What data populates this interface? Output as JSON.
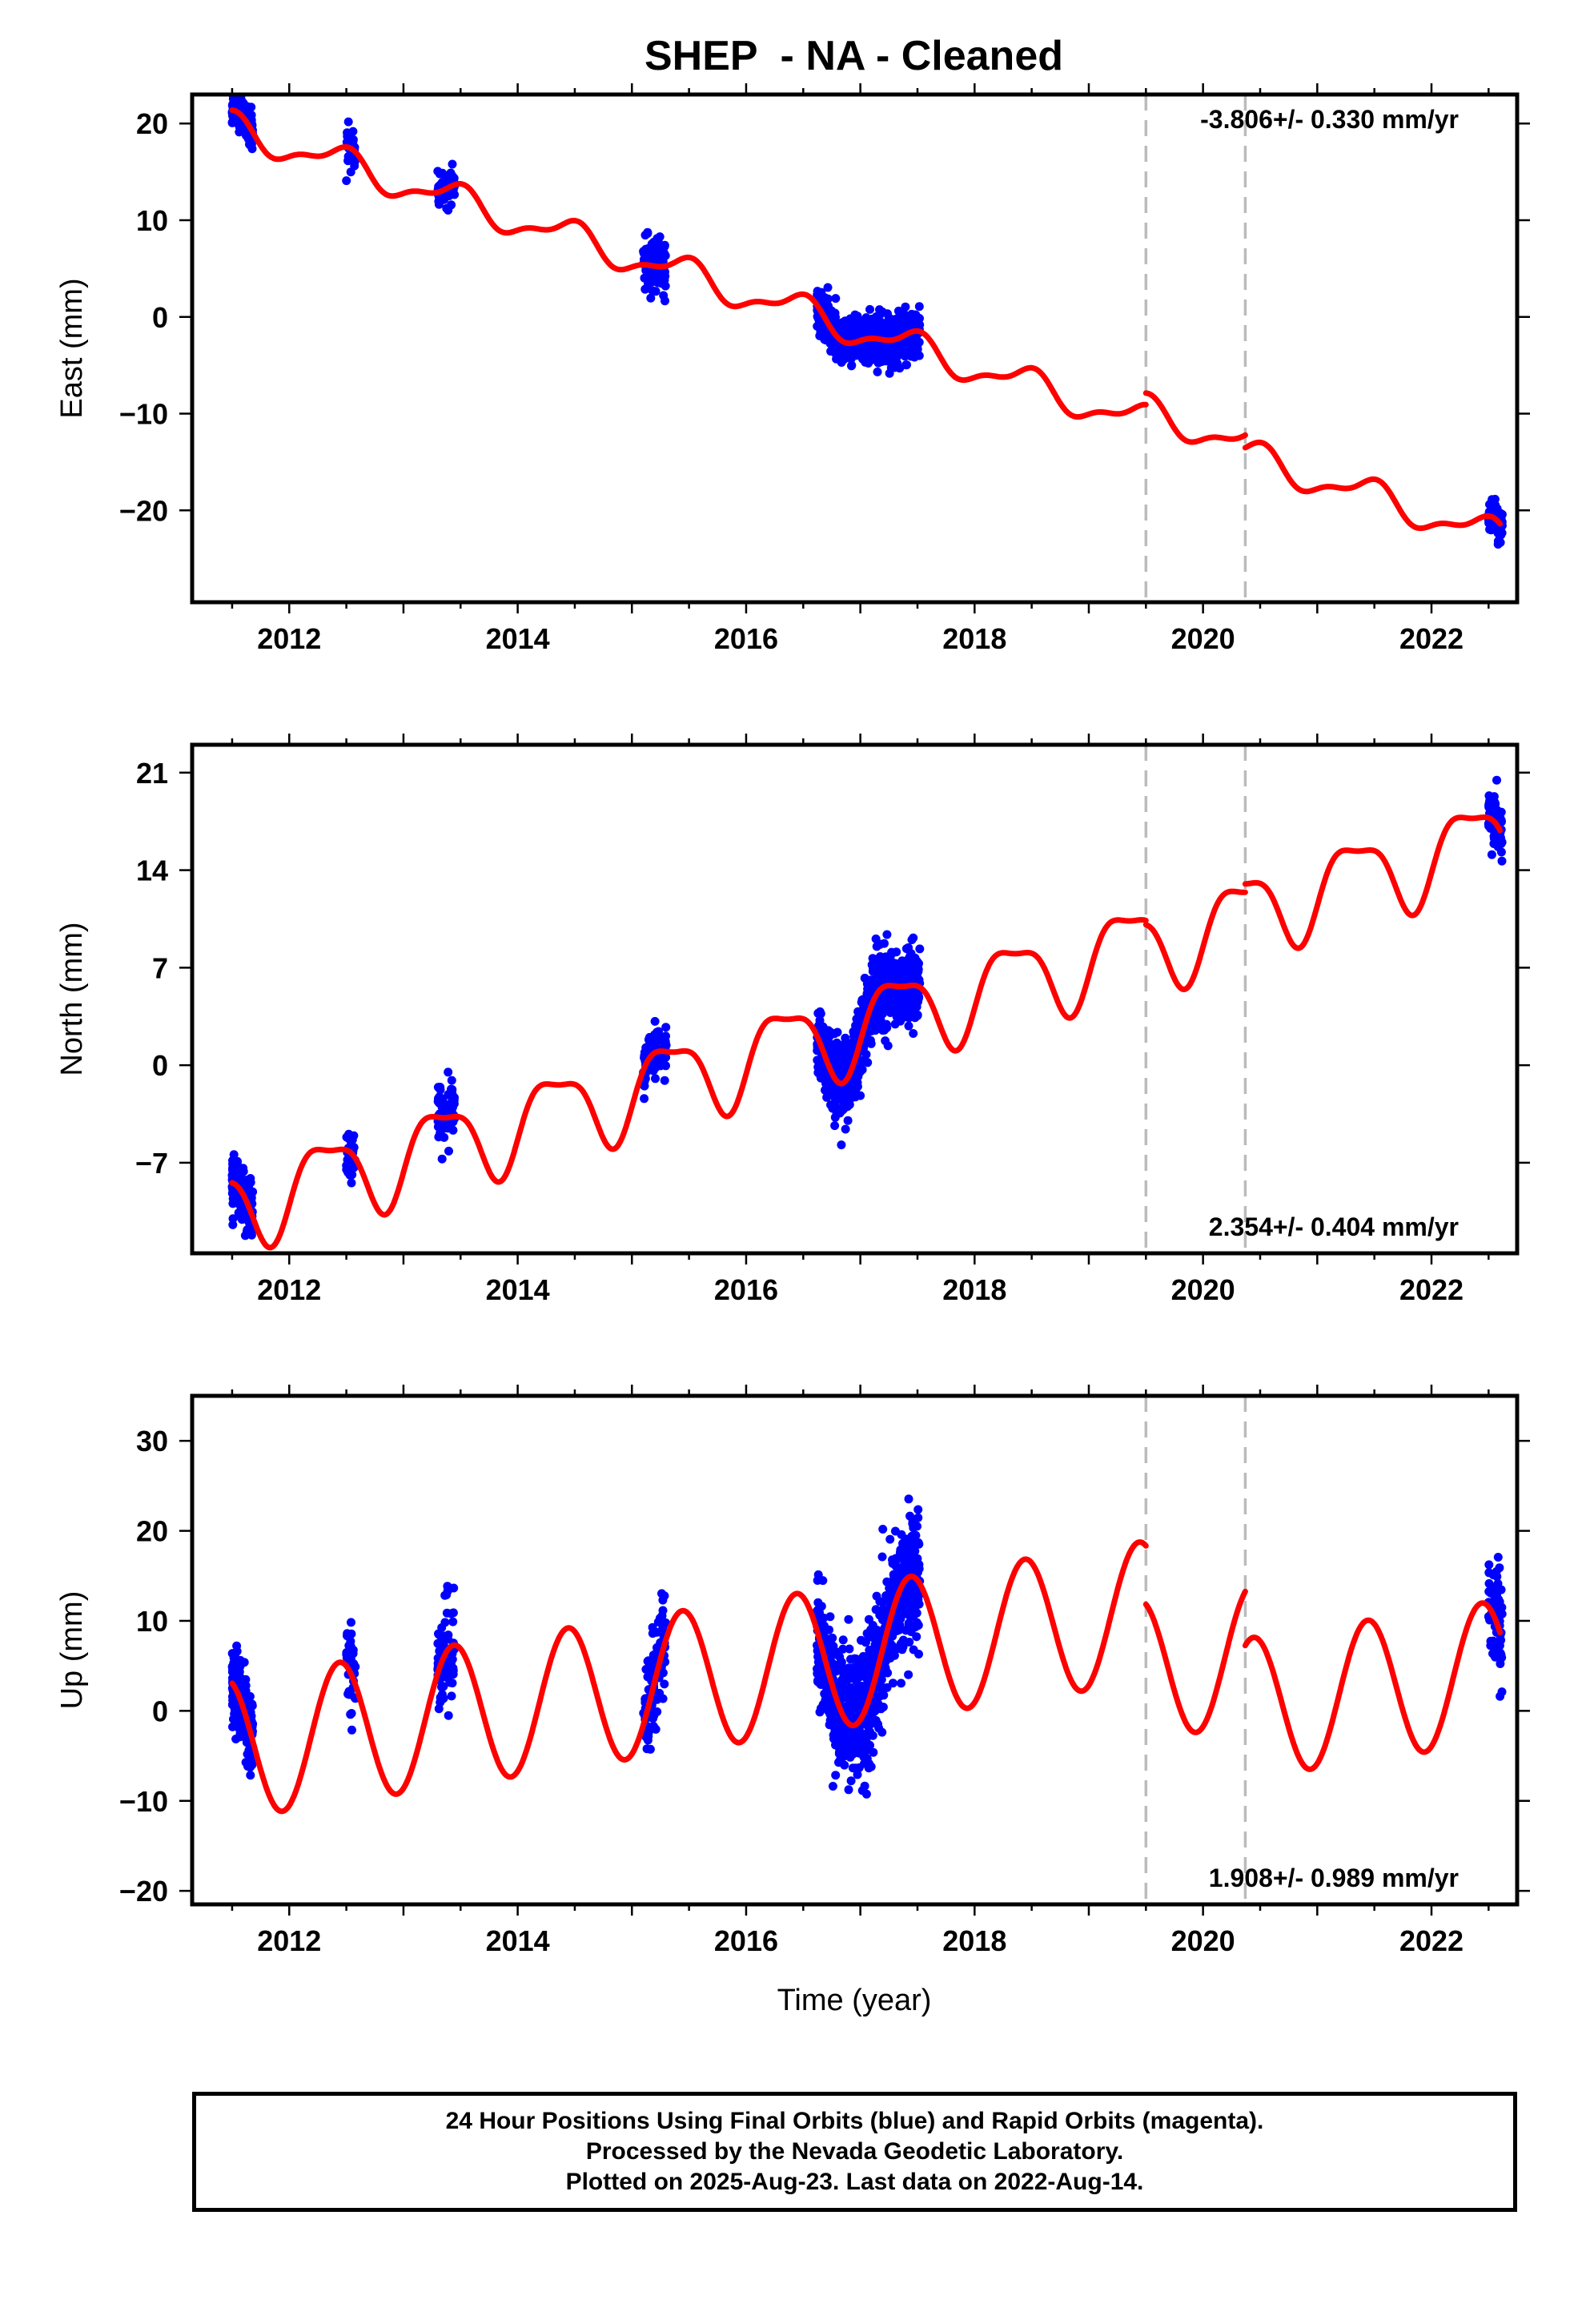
{
  "title": "SHEP  - NA - Cleaned",
  "xlabel": "Time (year)",
  "footer": [
    "24 Hour Positions Using Final Orbits (blue) and Rapid Orbits (magenta).",
    "Processed by the Nevada Geodetic Laboratory.",
    "Plotted on 2025-Aug-23. Last data on 2022-Aug-14."
  ],
  "colors": {
    "data": "#0000ff",
    "model": "#ff0000",
    "breaks": "#bbbbbb"
  },
  "chart_data": [
    {
      "type": "scatter",
      "name": "east",
      "ylabel": "East (mm)",
      "rate_label": "-3.806+/- 0.330 mm/yr",
      "xlim": [
        2011.15,
        2022.75
      ],
      "ylim": [
        -29.5,
        23
      ],
      "xticks": [
        2012,
        2014,
        2016,
        2018,
        2020,
        2022
      ],
      "yticks": [
        20,
        10,
        0,
        -10,
        -20
      ],
      "ytick_labels": [
        "20",
        "10",
        "0",
        "−10",
        "−20"
      ],
      "breaks": [
        2019.5,
        2020.37
      ],
      "model": {
        "rate": -3.806,
        "ref_year": 2011.5,
        "offset": 19.5,
        "annual_amp": 1.5,
        "annual_phase": -1.3,
        "semiannual_amp": 0.6,
        "semiannual_phase": 0.8,
        "steps": [
          [
            2019.5,
            1.2
          ],
          [
            2020.37,
            -1.3
          ]
        ]
      },
      "point_groups": [
        {
          "start": 2011.5,
          "end": 2011.68,
          "n": 220,
          "scatter": 0.8
        },
        {
          "start": 2012.5,
          "end": 2012.58,
          "n": 35,
          "scatter": 1.0
        },
        {
          "start": 2013.3,
          "end": 2013.45,
          "n": 80,
          "scatter": 0.8
        },
        {
          "start": 2015.1,
          "end": 2015.3,
          "n": 110,
          "scatter": 1.4
        },
        {
          "start": 2016.62,
          "end": 2017.52,
          "n": 900,
          "scatter": 1.2
        },
        {
          "start": 2022.5,
          "end": 2022.62,
          "n": 70,
          "scatter": 0.9
        }
      ]
    },
    {
      "type": "scatter",
      "name": "north",
      "ylabel": "North (mm)",
      "rate_label": "2.354+/- 0.404 mm/yr",
      "xlim": [
        2011.15,
        2022.75
      ],
      "ylim": [
        -13.5,
        23
      ],
      "xticks": [
        2012,
        2014,
        2016,
        2018,
        2020,
        2022
      ],
      "yticks": [
        21,
        14,
        7,
        0,
        -7
      ],
      "ytick_labels": [
        "21",
        "14",
        "7",
        "0",
        "−7"
      ],
      "breaks": [
        2019.5,
        2020.37
      ],
      "model": {
        "rate": 2.354,
        "ref_year": 2011.5,
        "offset": -10.1,
        "annual_amp": 2.9,
        "annual_phase": -0.5,
        "semiannual_amp": 0.9,
        "semiannual_phase": 0.3,
        "steps": [
          [
            2019.5,
            -0.3
          ],
          [
            2020.37,
            0.6
          ]
        ]
      },
      "point_groups": [
        {
          "start": 2011.5,
          "end": 2011.68,
          "n": 220,
          "scatter": 0.9
        },
        {
          "start": 2012.5,
          "end": 2012.58,
          "n": 35,
          "scatter": 0.9
        },
        {
          "start": 2013.3,
          "end": 2013.45,
          "n": 80,
          "scatter": 1.2
        },
        {
          "start": 2015.1,
          "end": 2015.3,
          "n": 110,
          "scatter": 0.9
        },
        {
          "start": 2016.62,
          "end": 2017.52,
          "n": 900,
          "scatter": 1.3
        },
        {
          "start": 2022.5,
          "end": 2022.62,
          "n": 70,
          "scatter": 0.9
        }
      ]
    },
    {
      "type": "scatter",
      "name": "up",
      "ylabel": "Up (mm)",
      "rate_label": "1.908+/- 0.989 mm/yr",
      "xlim": [
        2011.15,
        2022.75
      ],
      "ylim": [
        -21.5,
        35
      ],
      "xticks": [
        2012,
        2014,
        2016,
        2018,
        2020,
        2022
      ],
      "yticks": [
        30,
        20,
        10,
        0,
        -10,
        -20
      ],
      "ytick_labels": [
        "30",
        "20",
        "10",
        "0",
        "−10",
        "−20"
      ],
      "breaks": [
        2019.5,
        2020.37
      ],
      "model": {
        "rate": 1.908,
        "ref_year": 2011.5,
        "offset": -4.2,
        "annual_amp": 7.8,
        "annual_phase": -1.2,
        "semiannual_amp": 0.0,
        "semiannual_phase": 0.0,
        "steps": [
          [
            2019.5,
            -6.5
          ],
          [
            2020.37,
            -6.0
          ]
        ]
      },
      "point_groups": [
        {
          "start": 2011.5,
          "end": 2011.68,
          "n": 220,
          "scatter": 2.2
        },
        {
          "start": 2012.5,
          "end": 2012.58,
          "n": 35,
          "scatter": 2.5
        },
        {
          "start": 2013.3,
          "end": 2013.45,
          "n": 80,
          "scatter": 3.0
        },
        {
          "start": 2015.1,
          "end": 2015.3,
          "n": 110,
          "scatter": 3.0
        },
        {
          "start": 2016.62,
          "end": 2017.52,
          "n": 900,
          "scatter": 3.5
        },
        {
          "start": 2022.5,
          "end": 2022.62,
          "n": 70,
          "scatter": 3.0
        }
      ]
    }
  ]
}
